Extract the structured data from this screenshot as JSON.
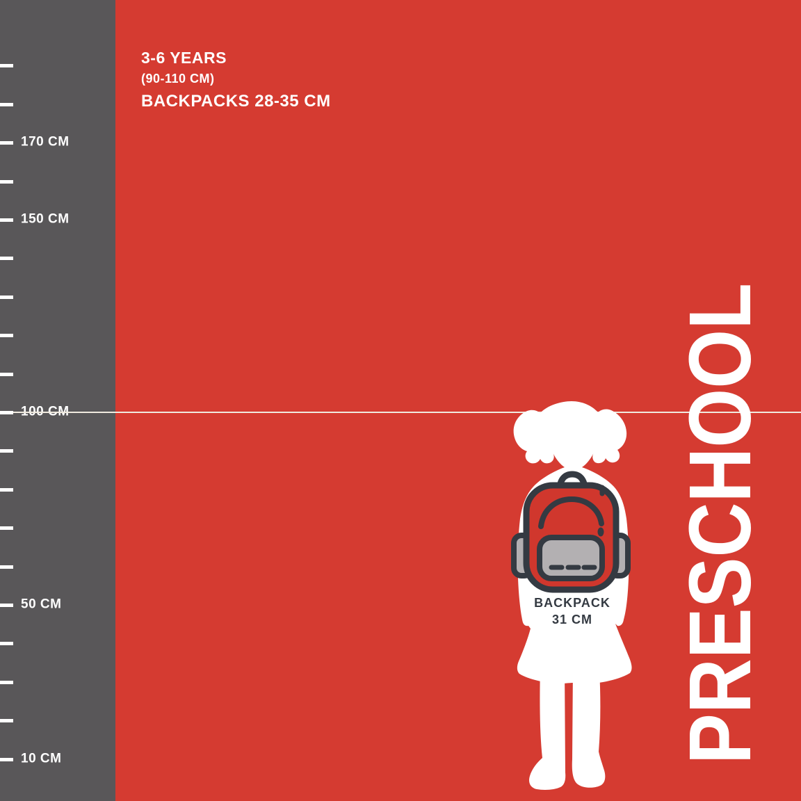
{
  "title": "PRESCHOOL",
  "colors": {
    "background_red": "#d53b31",
    "ruler_gray": "#595759",
    "white": "#ffffff",
    "outline_dark": "#343a42",
    "pocket_gray": "#b3b0b2",
    "backpack_red": "#d0372d",
    "reference_line": "#f0eadf"
  },
  "header": {
    "age_range": "3-6 YEARS",
    "height_range": "(90-110 CM)",
    "backpack_range": "BACKPACKS 28-35 CM"
  },
  "ruler": {
    "unit": "CM",
    "reference_line_value": 100,
    "ticks": [
      {
        "value": 190,
        "label": ""
      },
      {
        "value": 180,
        "label": ""
      },
      {
        "value": 170,
        "label": "170 CM"
      },
      {
        "value": 160,
        "label": ""
      },
      {
        "value": 150,
        "label": "150 CM"
      },
      {
        "value": 140,
        "label": ""
      },
      {
        "value": 130,
        "label": ""
      },
      {
        "value": 120,
        "label": ""
      },
      {
        "value": 110,
        "label": ""
      },
      {
        "value": 100,
        "label": "100 CM"
      },
      {
        "value": 90,
        "label": ""
      },
      {
        "value": 80,
        "label": ""
      },
      {
        "value": 70,
        "label": ""
      },
      {
        "value": 60,
        "label": ""
      },
      {
        "value": 50,
        "label": "50 CM"
      },
      {
        "value": 40,
        "label": ""
      },
      {
        "value": 30,
        "label": ""
      },
      {
        "value": 20,
        "label": ""
      },
      {
        "value": 10,
        "label": "10 CM"
      }
    ]
  },
  "figure": {
    "icon": "girl-silhouette-with-backpack",
    "backpack_label_line1": "BACKPACK",
    "backpack_label_line2": "31 CM"
  }
}
